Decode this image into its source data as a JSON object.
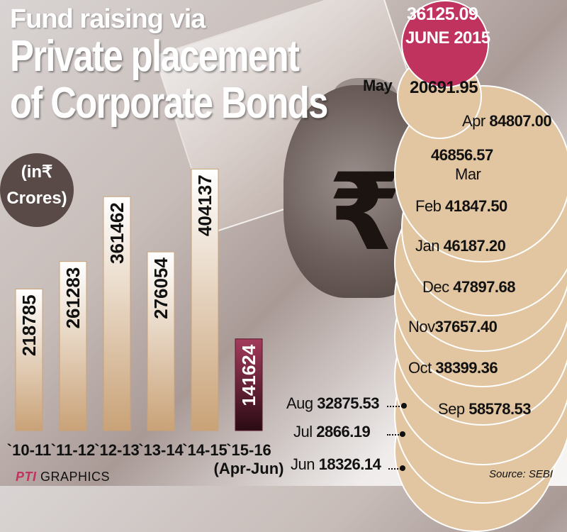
{
  "title": {
    "line1": "Fund raising via",
    "line2": "Private placement",
    "line3": "of Corporate Bonds"
  },
  "units": {
    "line1": "(in₹",
    "line2": "Crores)"
  },
  "rupee_symbol": "₹",
  "chart_data": [
    {
      "type": "bar",
      "categories": [
        "`10-11",
        "`11-12",
        "`12-13",
        "`13-14",
        "`14-15",
        "`15-16"
      ],
      "category_sublabels": [
        "",
        "",
        "",
        "",
        "",
        "(Apr-Jun)"
      ],
      "values": [
        218785,
        261283,
        361462,
        276054,
        404137,
        141624
      ],
      "value_labels": [
        "218785",
        "261283",
        "361462",
        "276054",
        "404137",
        "141624"
      ],
      "ylim": [
        0,
        420000
      ],
      "grid": false,
      "colors": {
        "bars": "#d9b993",
        "highlight": "#6b1d33"
      }
    },
    {
      "type": "table",
      "entries": [
        {
          "month": "JUNE 2015",
          "value": "36125.09"
        },
        {
          "month": "May",
          "value": "20691.95"
        },
        {
          "month": "Apr",
          "value": "84807.00"
        },
        {
          "month": "Mar",
          "value": "46856.57"
        },
        {
          "month": "Feb",
          "value": "41847.50"
        },
        {
          "month": "Jan",
          "value": "46187.20"
        },
        {
          "month": "Dec",
          "value": "47897.68"
        },
        {
          "month": "Nov",
          "value": "37657.40"
        },
        {
          "month": "Oct",
          "value": "38399.36"
        },
        {
          "month": "Sep",
          "value": "58578.53"
        },
        {
          "month": "Aug",
          "value": "32875.53"
        },
        {
          "month": "Jul",
          "value": "2866.19"
        },
        {
          "month": "Jun",
          "value": "18326.14"
        }
      ]
    }
  ],
  "source": "Source: SEBI",
  "credit": {
    "logo": "PTI",
    "text": "GRAPHICS"
  },
  "colors": {
    "accent": "#c0335f",
    "bubble": "#e2c6a1"
  }
}
